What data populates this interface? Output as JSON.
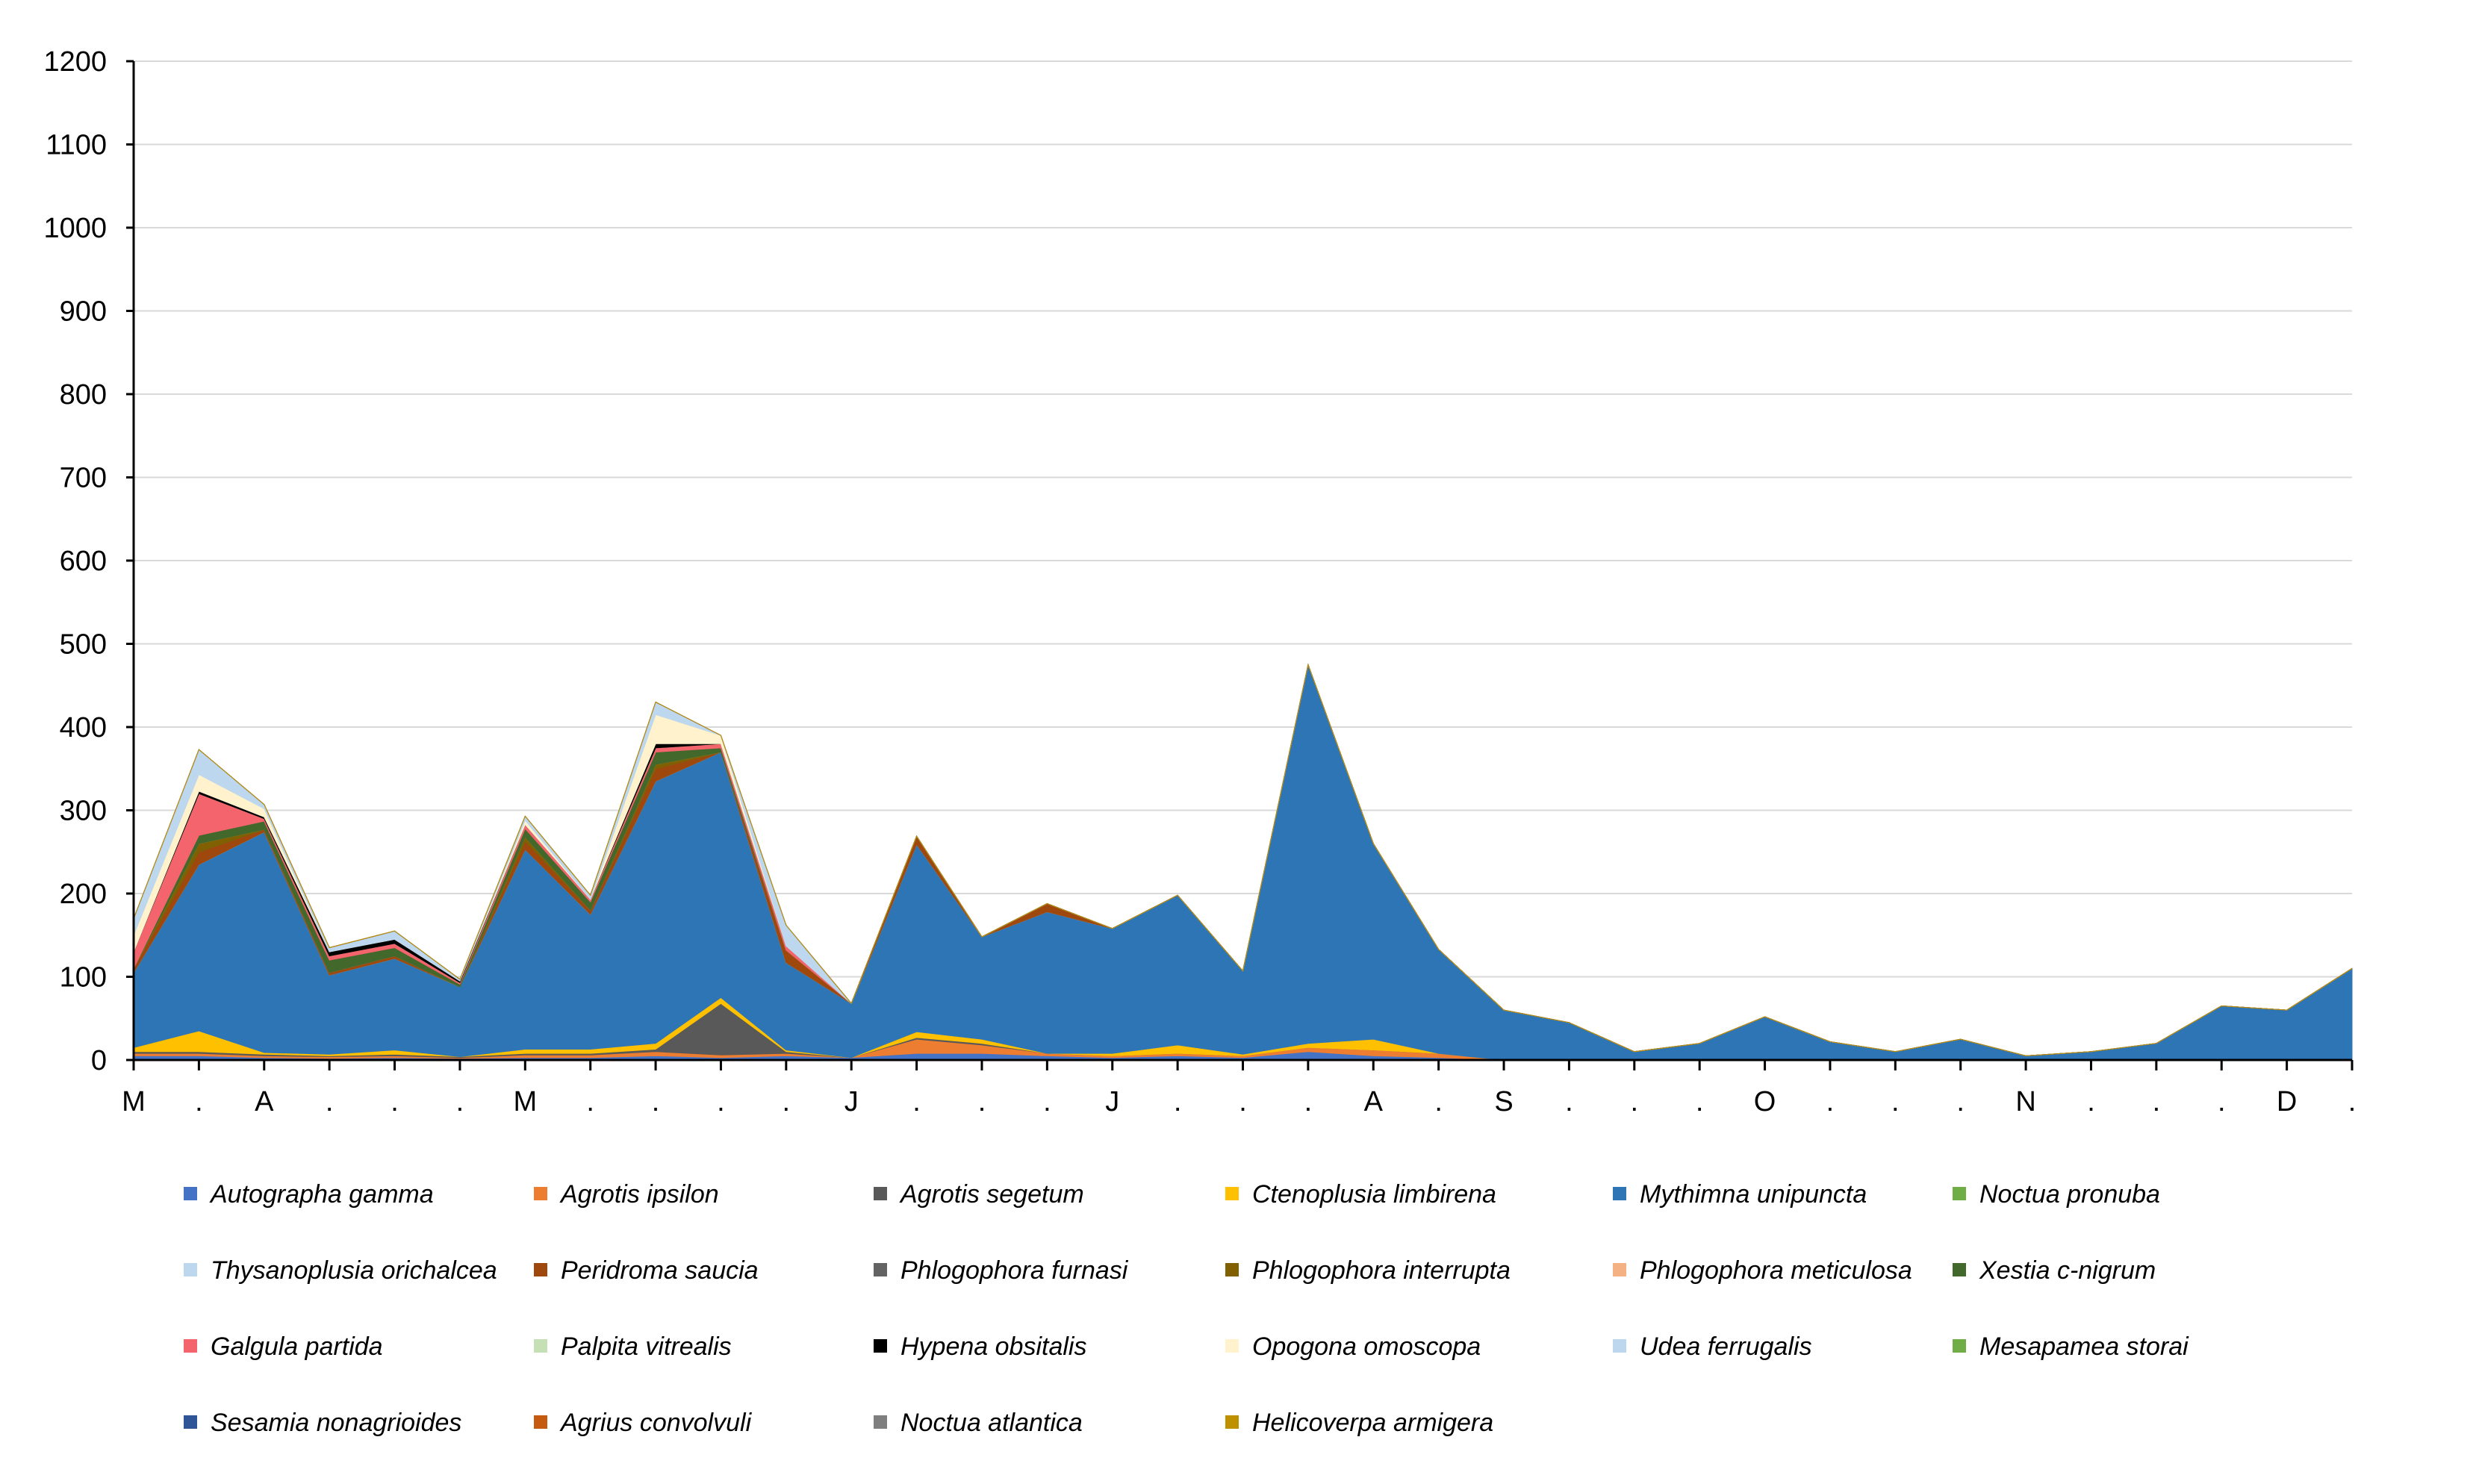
{
  "chart_data": {
    "type": "area",
    "stacked": true,
    "grid": "horizontal",
    "legend_position": "bottom",
    "ylim": [
      0,
      1200
    ],
    "yticks": [
      0,
      100,
      200,
      300,
      400,
      500,
      600,
      700,
      800,
      900,
      1000,
      1100,
      1200
    ],
    "ytick_labels": [
      "0",
      "100",
      "200",
      "300",
      "400",
      "500",
      "600",
      "700",
      "800",
      "900",
      "1000",
      "1100",
      "1200"
    ],
    "x_labels": [
      "M",
      ".",
      "A",
      ".",
      ".",
      ".",
      "M",
      ".",
      ".",
      ".",
      ".",
      "J",
      ".",
      ".",
      ".",
      "J",
      ".",
      ".",
      ".",
      "A",
      ".",
      "S",
      ".",
      ".",
      ".",
      "O",
      ".",
      ".",
      ".",
      "N",
      ".",
      ".",
      ".",
      "D",
      "."
    ],
    "series": [
      {
        "name": "Autographa gamma",
        "color": "#4472C4",
        "values": [
          5,
          5,
          3,
          2,
          3,
          2,
          3,
          3,
          5,
          3,
          5,
          3,
          8,
          8,
          5,
          3,
          5,
          3,
          10,
          5,
          3,
          0,
          0,
          0,
          0,
          0,
          0,
          0,
          0,
          0,
          0,
          0,
          0,
          0,
          0
        ]
      },
      {
        "name": "Agrotis ipsilon",
        "color": "#ED7D31",
        "values": [
          3,
          3,
          2,
          2,
          2,
          1,
          3,
          3,
          5,
          3,
          3,
          0,
          17,
          10,
          3,
          2,
          3,
          2,
          5,
          7,
          5,
          0,
          0,
          0,
          0,
          0,
          0,
          0,
          0,
          0,
          0,
          0,
          0,
          0,
          0
        ]
      },
      {
        "name": "Agrotis segetum",
        "color": "#595959",
        "values": [
          2,
          2,
          2,
          1,
          2,
          1,
          2,
          2,
          3,
          62,
          2,
          0,
          2,
          2,
          0,
          0,
          0,
          0,
          0,
          0,
          0,
          0,
          0,
          0,
          0,
          0,
          0,
          0,
          0,
          0,
          0,
          0,
          0,
          0,
          0
        ]
      },
      {
        "name": "Ctenoplusia limbirena",
        "color": "#FFC000",
        "values": [
          5,
          25,
          2,
          2,
          5,
          0,
          5,
          5,
          7,
          7,
          2,
          0,
          7,
          5,
          0,
          3,
          10,
          2,
          5,
          13,
          0,
          0,
          0,
          0,
          0,
          0,
          0,
          0,
          0,
          0,
          0,
          0,
          0,
          0,
          0
        ]
      },
      {
        "name": "Mythimna unipuncta",
        "color": "#2E75B6",
        "values": [
          90,
          200,
          265,
          95,
          110,
          84,
          240,
          162,
          315,
          295,
          105,
          65,
          225,
          123,
          170,
          150,
          180,
          100,
          455,
          235,
          125,
          60,
          45,
          10,
          20,
          52,
          22,
          10,
          25,
          5,
          10,
          20,
          65,
          60,
          110
        ]
      },
      {
        "name": "Noctua pronuba",
        "color": "#70AD47",
        "values": [
          0,
          0,
          0,
          0,
          0,
          0,
          0,
          0,
          0,
          0,
          0,
          0,
          0,
          0,
          0,
          0,
          0,
          0,
          0,
          0,
          0,
          0,
          0,
          0,
          0,
          0,
          0,
          0,
          0,
          0,
          0,
          0,
          0,
          0,
          0
        ]
      },
      {
        "name": "Thysanoplusia orichalcea",
        "color": "#BDD7EE",
        "values": [
          0,
          0,
          0,
          0,
          0,
          0,
          0,
          0,
          0,
          0,
          0,
          0,
          0,
          0,
          0,
          0,
          0,
          0,
          0,
          0,
          0,
          0,
          0,
          0,
          0,
          0,
          0,
          0,
          0,
          0,
          0,
          0,
          0,
          0,
          0
        ]
      },
      {
        "name": "Peridroma saucia",
        "color": "#9E480E",
        "values": [
          5,
          15,
          3,
          3,
          3,
          0,
          10,
          5,
          15,
          0,
          15,
          0,
          10,
          0,
          10,
          0,
          0,
          0,
          0,
          0,
          0,
          0,
          0,
          0,
          0,
          0,
          0,
          0,
          0,
          0,
          0,
          0,
          0,
          0,
          0
        ]
      },
      {
        "name": "Phlogophora furnasi",
        "color": "#636363",
        "values": [
          0,
          0,
          0,
          0,
          0,
          0,
          0,
          0,
          0,
          0,
          0,
          0,
          0,
          0,
          0,
          0,
          0,
          0,
          0,
          0,
          0,
          0,
          0,
          0,
          0,
          0,
          0,
          0,
          0,
          0,
          0,
          0,
          0,
          0,
          0
        ]
      },
      {
        "name": "Phlogophora interrupta",
        "color": "#806000",
        "values": [
          0,
          10,
          0,
          0,
          0,
          0,
          5,
          0,
          5,
          0,
          0,
          0,
          0,
          0,
          0,
          0,
          0,
          0,
          0,
          0,
          0,
          0,
          0,
          0,
          0,
          0,
          0,
          0,
          0,
          0,
          0,
          0,
          0,
          0,
          0
        ]
      },
      {
        "name": "Phlogophora meticulosa",
        "color": "#F4B183",
        "values": [
          0,
          0,
          0,
          0,
          0,
          0,
          0,
          0,
          0,
          0,
          0,
          0,
          0,
          0,
          0,
          0,
          0,
          0,
          0,
          0,
          0,
          0,
          0,
          0,
          0,
          0,
          0,
          0,
          0,
          0,
          0,
          0,
          0,
          0,
          0
        ]
      },
      {
        "name": "Xestia c-nigrum",
        "color": "#43682B",
        "values": [
          0,
          10,
          10,
          15,
          10,
          3,
          10,
          10,
          15,
          5,
          0,
          0,
          0,
          0,
          0,
          0,
          0,
          0,
          0,
          0,
          0,
          0,
          0,
          0,
          0,
          0,
          0,
          0,
          0,
          0,
          0,
          0,
          0,
          0,
          0
        ]
      },
      {
        "name": "Galgula partida",
        "color": "#F4646C",
        "values": [
          20,
          50,
          3,
          5,
          5,
          2,
          5,
          3,
          5,
          5,
          5,
          0,
          0,
          0,
          0,
          0,
          0,
          0,
          0,
          0,
          0,
          0,
          0,
          0,
          0,
          0,
          0,
          0,
          0,
          0,
          0,
          0,
          0,
          0,
          0
        ]
      },
      {
        "name": "Palpita vitrealis",
        "color": "#C5E0B4",
        "values": [
          0,
          0,
          0,
          0,
          0,
          0,
          0,
          0,
          0,
          0,
          0,
          0,
          0,
          0,
          0,
          0,
          0,
          0,
          0,
          0,
          0,
          0,
          0,
          0,
          0,
          0,
          0,
          0,
          0,
          0,
          0,
          0,
          0,
          0,
          0
        ]
      },
      {
        "name": "Hypena obsitalis",
        "color": "#000000",
        "values": [
          0,
          3,
          2,
          5,
          5,
          2,
          0,
          0,
          5,
          0,
          0,
          0,
          0,
          0,
          0,
          0,
          0,
          0,
          0,
          0,
          0,
          0,
          0,
          0,
          0,
          0,
          0,
          0,
          0,
          0,
          0,
          0,
          0,
          0,
          0
        ]
      },
      {
        "name": "Opogona omoscopa",
        "color": "#FFF2CC",
        "values": [
          20,
          20,
          10,
          0,
          0,
          0,
          5,
          0,
          35,
          10,
          0,
          0,
          0,
          0,
          0,
          0,
          0,
          0,
          0,
          0,
          0,
          0,
          0,
          0,
          0,
          0,
          0,
          0,
          0,
          0,
          0,
          0,
          0,
          0,
          0
        ]
      },
      {
        "name": "Udea ferrugalis",
        "color": "#BDD7EE",
        "values": [
          20,
          30,
          5,
          5,
          10,
          2,
          5,
          5,
          15,
          0,
          25,
          0,
          0,
          0,
          0,
          0,
          0,
          0,
          0,
          0,
          0,
          0,
          0,
          0,
          0,
          0,
          0,
          0,
          0,
          0,
          0,
          0,
          0,
          0,
          0
        ]
      },
      {
        "name": "Mesapamea storai",
        "color": "#70AD47",
        "values": [
          0,
          0,
          0,
          0,
          0,
          0,
          0,
          0,
          0,
          0,
          0,
          0,
          0,
          0,
          0,
          0,
          0,
          0,
          0,
          0,
          0,
          0,
          0,
          0,
          0,
          0,
          0,
          0,
          0,
          0,
          0,
          0,
          0,
          0,
          0
        ]
      },
      {
        "name": "Sesamia nonagrioides",
        "color": "#2F5597",
        "values": [
          0,
          0,
          0,
          0,
          0,
          0,
          0,
          0,
          0,
          0,
          0,
          0,
          0,
          0,
          0,
          0,
          0,
          0,
          0,
          0,
          0,
          0,
          0,
          0,
          0,
          0,
          0,
          0,
          0,
          0,
          0,
          0,
          0,
          0,
          0
        ]
      },
      {
        "name": "Agrius convolvuli",
        "color": "#C55A11",
        "values": [
          0,
          0,
          0,
          0,
          0,
          0,
          0,
          0,
          0,
          0,
          0,
          0,
          0,
          0,
          0,
          0,
          0,
          0,
          0,
          0,
          0,
          0,
          0,
          0,
          0,
          0,
          0,
          0,
          0,
          0,
          0,
          0,
          0,
          0,
          0
        ]
      },
      {
        "name": "Noctua atlantica",
        "color": "#7F7F7F",
        "values": [
          0,
          0,
          0,
          0,
          0,
          0,
          0,
          0,
          0,
          0,
          0,
          0,
          0,
          0,
          0,
          0,
          0,
          0,
          0,
          0,
          0,
          0,
          0,
          0,
          0,
          0,
          0,
          0,
          0,
          0,
          0,
          0,
          0,
          0,
          0
        ]
      },
      {
        "name": "Helicoverpa armigera",
        "color": "#BF9000",
        "values": [
          0,
          0,
          0,
          0,
          0,
          0,
          0,
          0,
          0,
          0,
          0,
          0,
          0,
          0,
          0,
          0,
          0,
          0,
          0,
          0,
          0,
          0,
          0,
          0,
          0,
          0,
          0,
          0,
          0,
          0,
          0,
          0,
          0,
          0,
          0
        ]
      }
    ]
  }
}
